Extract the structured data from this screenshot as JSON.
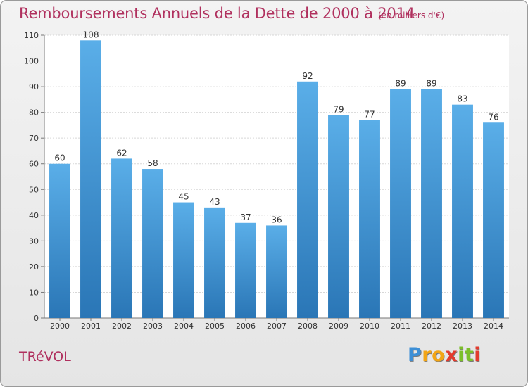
{
  "chart_data": {
    "type": "bar",
    "title": "Remboursements Annuels de la Dette de 2000 à 2014",
    "unit": "(en milliers d'€)",
    "categories": [
      "2000",
      "2001",
      "2002",
      "2003",
      "2004",
      "2005",
      "2006",
      "2007",
      "2008",
      "2009",
      "2010",
      "2011",
      "2012",
      "2013",
      "2014"
    ],
    "values": [
      60,
      108,
      62,
      58,
      45,
      43,
      37,
      36,
      92,
      79,
      77,
      89,
      89,
      83,
      76
    ],
    "ylim": [
      0,
      110
    ],
    "yticks": [
      0,
      10,
      20,
      30,
      40,
      50,
      60,
      70,
      80,
      90,
      100,
      110
    ],
    "grid": true,
    "bar_color_top": "#5aaee8",
    "bar_color_bottom": "#2a76b6"
  },
  "commune": "TRéVOL",
  "logo": {
    "letters": [
      "P",
      "r",
      "o",
      "x",
      "i",
      "t",
      "i"
    ],
    "colors": [
      "#3d8fd6",
      "#f2a516",
      "#f2a516",
      "#e33b2e",
      "#7cbf2a",
      "#7cbf2a",
      "#e33b2e"
    ]
  }
}
